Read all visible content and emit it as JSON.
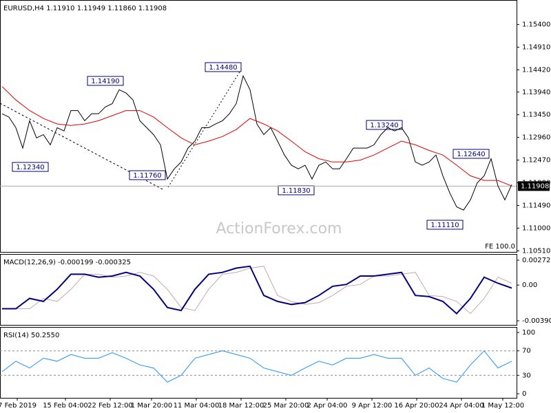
{
  "chart_data": [
    {
      "type": "line",
      "title": "EURUSD,H4  1.11910 1.11949 1.11860 1.11908",
      "xlim": [
        -0.3,
        74.7
      ],
      "ylim": [
        1.105,
        1.159
      ],
      "yticks": [
        {
          "value": 1.154,
          "label": "1.15400"
        },
        {
          "value": 1.1491,
          "label": "1.14910"
        },
        {
          "value": 1.1442,
          "label": "1.14420"
        },
        {
          "value": 1.1394,
          "label": "1.13940"
        },
        {
          "value": 1.1345,
          "label": "1.13450"
        },
        {
          "value": 1.1296,
          "label": "1.12960"
        },
        {
          "value": 1.1247,
          "label": "1.12470"
        },
        {
          "value": 1.1198,
          "label": "1.11980"
        },
        {
          "value": 1.1149,
          "label": "1.11490"
        },
        {
          "value": 1.11,
          "label": "1.11000"
        },
        {
          "value": 1.1051,
          "label": "1.10510"
        }
      ],
      "last_price": 1.11908,
      "annotations": [
        "1.14190",
        "1.14480",
        "1.12340",
        "1.11760",
        "1.11830",
        "1.13240",
        "1.12640",
        "1.11110",
        "FE 100.0"
      ],
      "watermark": "ActionForex.com",
      "grid": false,
      "series": [
        {
          "color": "#000000",
          "x": [
            0,
            1,
            2,
            3,
            4,
            5,
            6,
            7,
            8,
            9,
            10,
            11,
            12,
            13,
            14,
            15,
            16,
            17,
            18,
            19,
            20,
            21,
            22,
            23,
            24,
            25,
            26,
            27,
            28,
            29,
            30,
            31,
            32,
            33,
            34,
            35,
            36,
            37,
            38,
            39,
            40,
            41,
            42,
            43,
            44,
            45,
            46,
            47,
            48,
            49,
            50,
            51,
            52,
            53,
            54,
            55,
            56,
            57,
            58,
            59,
            60,
            61,
            62,
            63,
            64,
            65,
            66,
            67,
            68,
            69,
            70,
            71,
            72,
            73,
            74
          ],
          "values": [
            1.1347,
            1.134,
            1.1317,
            1.1273,
            1.1332,
            1.1295,
            1.1302,
            1.128,
            1.1317,
            1.131,
            1.1354,
            1.1354,
            1.1332,
            1.1347,
            1.1347,
            1.1362,
            1.1369,
            1.1399,
            1.1392,
            1.1377,
            1.1332,
            1.1317,
            1.1302,
            1.128,
            1.1206,
            1.1228,
            1.1243,
            1.1273,
            1.1288,
            1.1317,
            1.1317,
            1.1325,
            1.1332,
            1.1347,
            1.1369,
            1.1429,
            1.1399,
            1.1325,
            1.1302,
            1.1317,
            1.1288,
            1.1258,
            1.1236,
            1.1228,
            1.1236,
            1.1206,
            1.1236,
            1.1243,
            1.1228,
            1.1228,
            1.125,
            1.1273,
            1.1273,
            1.1273,
            1.128,
            1.1302,
            1.1317,
            1.131,
            1.1317,
            1.1295,
            1.1243,
            1.1236,
            1.1243,
            1.1258,
            1.1213,
            1.1176,
            1.1146,
            1.1139,
            1.1161,
            1.1198,
            1.1213,
            1.125,
            1.1191,
            1.1161,
            1.1194
          ]
        },
        {
          "color": "#e00000",
          "x": [
            0,
            2,
            4,
            6,
            8,
            10,
            12,
            14,
            16,
            18,
            20,
            22,
            24,
            26,
            28,
            30,
            32,
            34,
            36,
            38,
            40,
            42,
            44,
            46,
            48,
            50,
            52,
            54,
            56,
            58,
            60,
            62,
            64,
            66,
            68,
            70,
            72,
            74
          ],
          "values": [
            1.1406,
            1.1377,
            1.1354,
            1.1337,
            1.1325,
            1.1322,
            1.1325,
            1.1332,
            1.1343,
            1.1354,
            1.1354,
            1.134,
            1.1317,
            1.1295,
            1.128,
            1.1288,
            1.1298,
            1.1313,
            1.1337,
            1.1325,
            1.131,
            1.1288,
            1.1265,
            1.125,
            1.1243,
            1.1243,
            1.1247,
            1.1258,
            1.1273,
            1.1288,
            1.128,
            1.1268,
            1.1258,
            1.1236,
            1.1213,
            1.1203,
            1.1203,
            1.1191
          ]
        }
      ]
    },
    {
      "type": "line",
      "title": "MACD(12,26,9) -0.000199 -0.000325",
      "xlim": [
        -0.3,
        74.7
      ],
      "ylim": [
        -0.003905,
        0.002723
      ],
      "yticks": [
        0.002723,
        {
          "value": 0,
          "label": "0.00"
        },
        -0.003905
      ],
      "grid": false,
      "series": [
        {
          "color": "#c8a8a8",
          "x": [
            0,
            2,
            4,
            6,
            8,
            10,
            12,
            14,
            16,
            18,
            20,
            22,
            24,
            26,
            28,
            30,
            32,
            34,
            36,
            38,
            40,
            42,
            44,
            46,
            48,
            50,
            52,
            54,
            56,
            58,
            60,
            62,
            64,
            66,
            68,
            70,
            72,
            74
          ],
          "values": [
            -0.00259,
            -0.00259,
            -0.00259,
            -0.00146,
            -0.00179,
            -0.00046,
            0.00119,
            0.00119,
            0.00086,
            0.00099,
            0.00139,
            0.00099,
            -0.00046,
            -0.00245,
            -0.00278,
            -0.00046,
            0.00119,
            0.00139,
            0.00186,
            0.00206,
            -0.00113,
            -0.00179,
            -0.00212,
            -0.00192,
            -0.00113,
            -0.00013,
            7e-05,
            0.00099,
            0.00099,
            0.00119,
            0.00139,
            -0.00113,
            -0.00126,
            -0.00179,
            -0.00312,
            -0.00146,
            0.00086,
            0.0002
          ]
        },
        {
          "color": "#000080",
          "x": [
            0,
            2,
            4,
            6,
            8,
            10,
            12,
            14,
            16,
            18,
            20,
            22,
            24,
            26,
            28,
            30,
            32,
            34,
            36,
            38,
            40,
            42,
            44,
            46,
            48,
            50,
            52,
            54,
            56,
            58,
            60,
            62,
            64,
            66,
            68,
            70,
            72,
            74
          ],
          "values": [
            -0.00259,
            -0.00259,
            -0.00146,
            -0.00179,
            -0.00046,
            0.00119,
            0.00119,
            0.00086,
            0.00099,
            0.00139,
            0.00099,
            -0.00046,
            -0.00245,
            -0.00278,
            -0.00046,
            0.00119,
            0.00139,
            0.00186,
            0.00206,
            -0.00113,
            -0.00179,
            -0.00212,
            -0.00192,
            -0.00113,
            -0.00013,
            7e-05,
            0.00099,
            0.00099,
            0.00119,
            0.00139,
            -0.00113,
            -0.00126,
            -0.00179,
            -0.00312,
            -0.00146,
            0.00086,
            0.0002,
            -0.00033
          ]
        }
      ]
    },
    {
      "type": "line",
      "title": "RSI(14) 50.2550",
      "xlim": [
        -0.3,
        74.7
      ],
      "ylim": [
        0,
        100
      ],
      "yticks": [
        100,
        70,
        30,
        0
      ],
      "grid": true,
      "xticks": [
        {
          "value": 2.2,
          "label": "7 Feb 2019"
        },
        {
          "value": 9.2,
          "label": "15 Feb 04:00"
        },
        {
          "value": 15.7,
          "label": "22 Feb 12:00"
        },
        {
          "value": 21.7,
          "label": "1 Mar 20:00"
        },
        {
          "value": 28.2,
          "label": "11 Mar 04:00"
        },
        {
          "value": 34.7,
          "label": "18 Mar 12:00"
        },
        {
          "value": 41.2,
          "label": "25 Mar 20:00"
        },
        {
          "value": 47.2,
          "label": "2 Apr 04:00"
        },
        {
          "value": 53.7,
          "label": "9 Apr 12:00"
        },
        {
          "value": 60.2,
          "label": "16 Apr 20:00"
        },
        {
          "value": 66.7,
          "label": "24 Apr 04:00"
        },
        {
          "value": 72.7,
          "label": "1 May 12:00"
        }
      ],
      "series": [
        {
          "color": "#1e90ff",
          "x": [
            0,
            2,
            4,
            6,
            8,
            10,
            12,
            14,
            16,
            18,
            20,
            22,
            24,
            26,
            28,
            30,
            32,
            34,
            36,
            38,
            40,
            42,
            44,
            46,
            48,
            50,
            52,
            54,
            56,
            58,
            60,
            62,
            64,
            66,
            68,
            70,
            72,
            74
          ],
          "values": [
            36,
            53,
            42,
            58,
            53,
            64,
            58,
            58,
            67,
            58,
            47,
            42,
            19,
            30,
            58,
            64,
            70,
            64,
            58,
            42,
            36,
            30,
            42,
            53,
            47,
            58,
            58,
            64,
            58,
            58,
            30,
            42,
            25,
            19,
            47,
            70,
            42,
            53
          ]
        }
      ]
    }
  ]
}
